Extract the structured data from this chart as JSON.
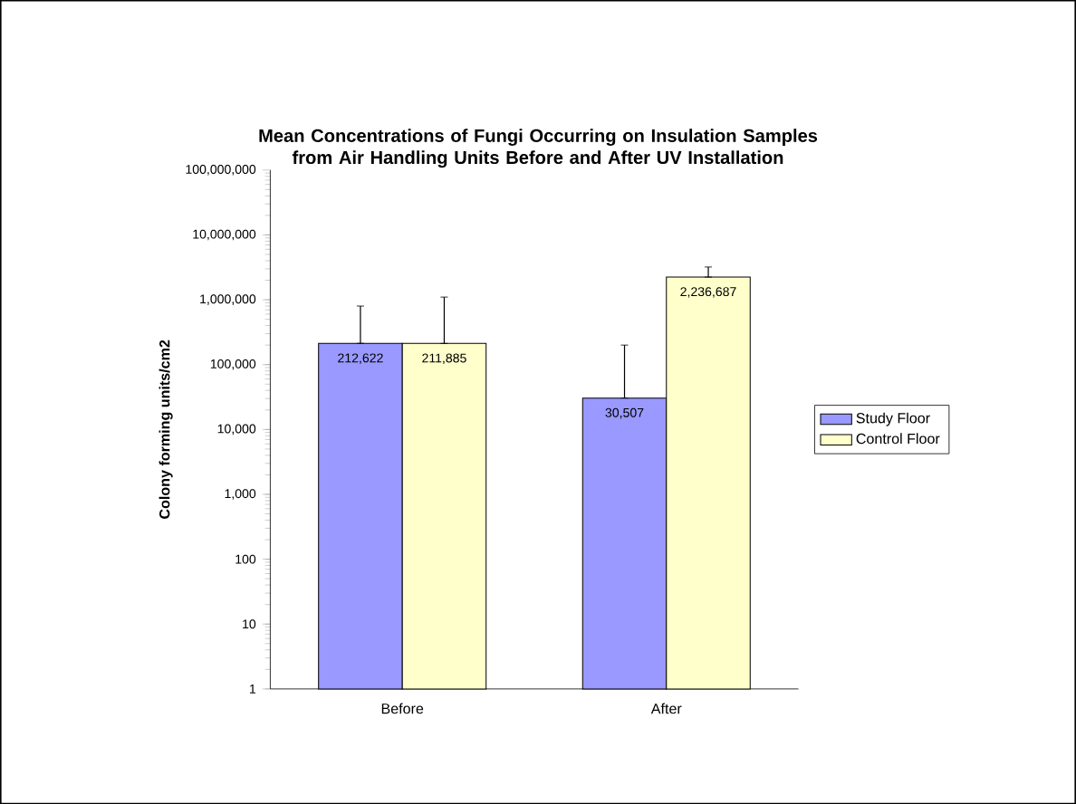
{
  "chart_data": {
    "type": "bar",
    "title": "Mean Concentrations of Fungi Occurring on Insulation Samples from Air Handling Units Before and After UV Installation",
    "ylabel": "Colony forming units/cm2",
    "categories": [
      "Before",
      "After"
    ],
    "log": true,
    "ylim": [
      1,
      100000000
    ],
    "yticks": [
      1,
      10,
      100,
      {
        "value": 1000,
        "label": "1,000"
      },
      {
        "value": 10000,
        "label": "10,000"
      },
      {
        "value": 100000,
        "label": "100,000"
      },
      {
        "value": 1000000,
        "label": "1,000,000"
      },
      {
        "value": 10000000,
        "label": "10,000,000"
      },
      {
        "value": 100000000,
        "label": "100,000,000"
      }
    ],
    "series": [
      {
        "name": "Study Floor",
        "color": "#9999ff",
        "values": [
          212622,
          30507
        ],
        "value_labels": [
          "212,622",
          "30,507"
        ],
        "errors": [
          [
            212622,
            800000
          ],
          [
            30507,
            200000
          ]
        ]
      },
      {
        "name": "Control Floor",
        "color": "#ffffcc",
        "values": [
          211885,
          2236687
        ],
        "value_labels": [
          "211,885",
          "2,236,687"
        ],
        "errors": [
          [
            211885,
            1100000
          ],
          [
            2236687,
            3200000
          ]
        ]
      }
    ],
    "legend": "right",
    "grid": false
  }
}
